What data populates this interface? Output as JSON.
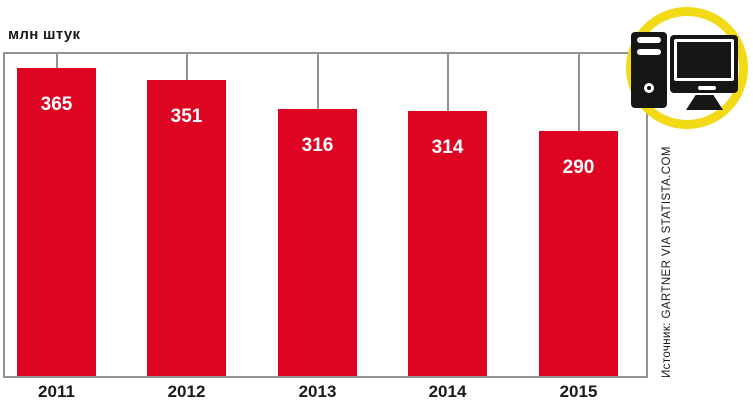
{
  "header": {
    "unit_label": "млн штук"
  },
  "chart_data": {
    "type": "bar",
    "title": "",
    "unit_label": "млн штук",
    "categories": [
      "2011",
      "2012",
      "2013",
      "2014",
      "2015"
    ],
    "values": [
      365,
      351,
      316,
      314,
      290
    ],
    "xlabel": "",
    "ylabel": "млн штук",
    "ylim": [
      0,
      386
    ],
    "grid": false,
    "legend": "none",
    "value_labels_inside_bars": true
  },
  "source": {
    "text": "Источник: GARTNER VIA STATISTA.COM"
  },
  "icon": {
    "name": "desktop-computer-icon",
    "shape": "tower-and-monitor-in-yellow-ring"
  },
  "colors": {
    "bar": "#de0522",
    "axis_line": "#929292",
    "text": "#1a1a1a",
    "value_label": "#ffffff",
    "badge_ring": "#f2da16",
    "icon_fill": "#161616"
  }
}
